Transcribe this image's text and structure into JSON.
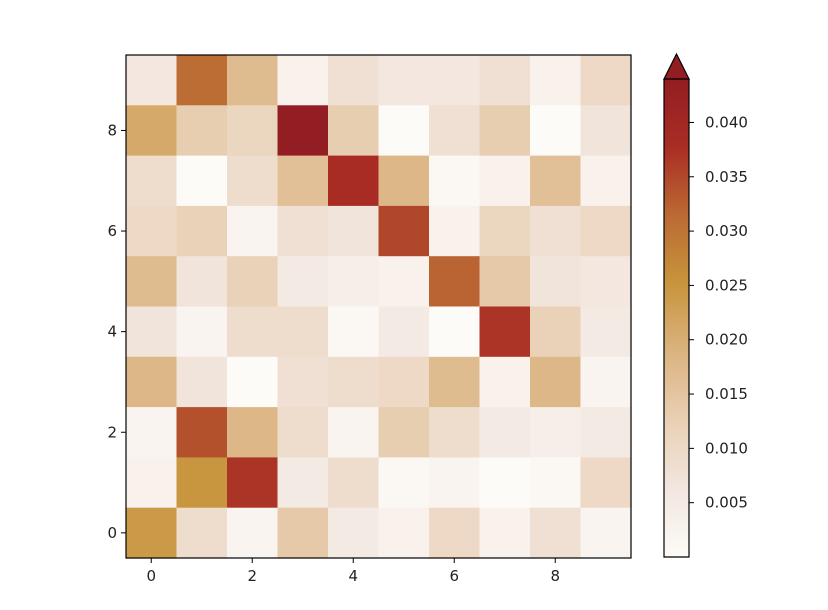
{
  "chart_data": {
    "type": "heatmap",
    "title": "",
    "xlabel": "",
    "ylabel": "",
    "x_ticks": [
      "0",
      "2",
      "4",
      "6",
      "8"
    ],
    "y_ticks": [
      "0",
      "2",
      "4",
      "6",
      "8"
    ],
    "x_tick_values": [
      0,
      2,
      4,
      6,
      8
    ],
    "y_tick_values": [
      0,
      2,
      4,
      6,
      8
    ],
    "xlim": [
      -0.5,
      9.5
    ],
    "ylim": [
      -0.5,
      9.5
    ],
    "grid": false,
    "origin": "lower",
    "rows_top_to_bottom": [
      [
        0.006,
        0.031,
        0.017,
        0.003,
        0.008,
        0.006,
        0.006,
        0.008,
        0.003,
        0.01
      ],
      [
        0.021,
        0.013,
        0.011,
        0.044,
        0.013,
        0.0,
        0.008,
        0.013,
        0.0,
        0.007
      ],
      [
        0.009,
        0.0,
        0.009,
        0.016,
        0.038,
        0.018,
        0.001,
        0.003,
        0.016,
        0.003
      ],
      [
        0.01,
        0.012,
        0.002,
        0.008,
        0.007,
        0.035,
        0.003,
        0.011,
        0.008,
        0.01
      ],
      [
        0.017,
        0.007,
        0.012,
        0.005,
        0.004,
        0.003,
        0.032,
        0.014,
        0.007,
        0.006
      ],
      [
        0.007,
        0.002,
        0.009,
        0.009,
        0.001,
        0.005,
        0.0,
        0.037,
        0.012,
        0.005
      ],
      [
        0.018,
        0.007,
        0.0,
        0.008,
        0.009,
        0.01,
        0.017,
        0.003,
        0.018,
        0.002
      ],
      [
        0.002,
        0.034,
        0.018,
        0.009,
        0.002,
        0.013,
        0.009,
        0.005,
        0.004,
        0.005
      ],
      [
        0.003,
        0.025,
        0.037,
        0.005,
        0.009,
        0.001,
        0.002,
        0.0,
        0.001,
        0.01
      ],
      [
        0.024,
        0.009,
        0.002,
        0.014,
        0.005,
        0.003,
        0.01,
        0.003,
        0.008,
        0.002
      ]
    ],
    "colorbar": {
      "min": 0.0,
      "max": 0.044,
      "extend": "max",
      "ticks": [
        0.005,
        0.01,
        0.015,
        0.02,
        0.025,
        0.03,
        0.035,
        0.04
      ],
      "tick_labels": [
        "0.005",
        "0.010",
        "0.015",
        "0.020",
        "0.025",
        "0.030",
        "0.035",
        "0.040"
      ],
      "colors": [
        "#fdfbf8",
        "#f2e6df",
        "#e9d0b4",
        "#dbb380",
        "#c8953c",
        "#bb6a33",
        "#a92d24",
        "#921d22"
      ],
      "over_color": "#921d22"
    }
  }
}
